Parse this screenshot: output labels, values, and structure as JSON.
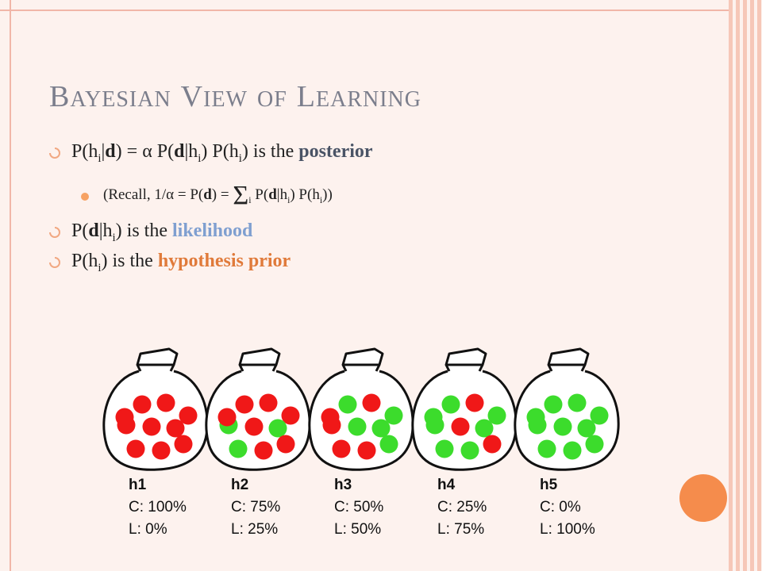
{
  "slide": {
    "title_words": [
      {
        "initial": "B",
        "rest": "AYESIAN"
      },
      {
        "initial": "V",
        "rest": "IEW"
      },
      {
        "initial": "",
        "rest": "OF"
      },
      {
        "initial": "L",
        "rest": "EARNING"
      }
    ],
    "bullet1": {
      "pre": "P(h",
      "sub1": "i",
      "bar1": "|",
      "d1": "d",
      "mid1": ") = ",
      "alpha": "α",
      "mid2": " P(",
      "d2": "d",
      "bar2": "|h",
      "sub2": "i",
      "mid3": ") P(h",
      "sub3": "i",
      "mid4": ") is the ",
      "keyword": "posterior"
    },
    "bullet2": {
      "pre": "(Recall, 1/",
      "alpha": "α",
      "mid1": " = P(",
      "d1": "d",
      "mid2": ") = ",
      "sigma": "Σ",
      "sub_sigma": "i",
      "mid3": " P(",
      "d2": "d",
      "bar": "|h",
      "sub1": "i",
      "mid4": ") P(h",
      "sub2": "i",
      "post": "))"
    },
    "bullet3": {
      "pre": "P(",
      "d": "d",
      "bar": "|h",
      "sub": "i",
      "mid": ") is the ",
      "keyword": "likelihood"
    },
    "bullet4": {
      "pre": "P(h",
      "sub": "i",
      "mid": ") is the ",
      "keyword": "hypothesis prior"
    }
  },
  "hypotheses": [
    {
      "name": "h1",
      "c": "C: 100%",
      "l": "L: 0%"
    },
    {
      "name": "h2",
      "c": "C: 75%",
      "l": "L: 25%"
    },
    {
      "name": "h3",
      "c": "C: 50%",
      "l": "L: 50%"
    },
    {
      "name": "h4",
      "c": "C: 25%",
      "l": "L: 75%"
    },
    {
      "name": "h5",
      "c": "C: 0%",
      "l": "L: 100%"
    }
  ],
  "colors": {
    "cherry": "#f01818",
    "lime": "#3cdc2c",
    "title": "#7b7e8c",
    "posterior": "#4a5466",
    "likelihood": "#7f9fd0",
    "prior": "#e07a3a"
  },
  "bag_candies": [
    [
      "cherry",
      "cherry",
      "cherry",
      "cherry",
      "cherry",
      "cherry",
      "cherry",
      "cherry",
      "cherry",
      "cherry"
    ],
    [
      "cherry",
      "cherry",
      "cherry",
      "lime",
      "cherry",
      "lime",
      "lime",
      "cherry",
      "cherry",
      "cherry"
    ],
    [
      "lime",
      "cherry",
      "lime",
      "cherry",
      "lime",
      "lime",
      "cherry",
      "cherry",
      "lime",
      "cherry"
    ],
    [
      "lime",
      "cherry",
      "lime",
      "lime",
      "cherry",
      "lime",
      "lime",
      "lime",
      "cherry",
      "lime"
    ],
    [
      "lime",
      "lime",
      "lime",
      "lime",
      "lime",
      "lime",
      "lime",
      "lime",
      "lime",
      "lime"
    ]
  ]
}
